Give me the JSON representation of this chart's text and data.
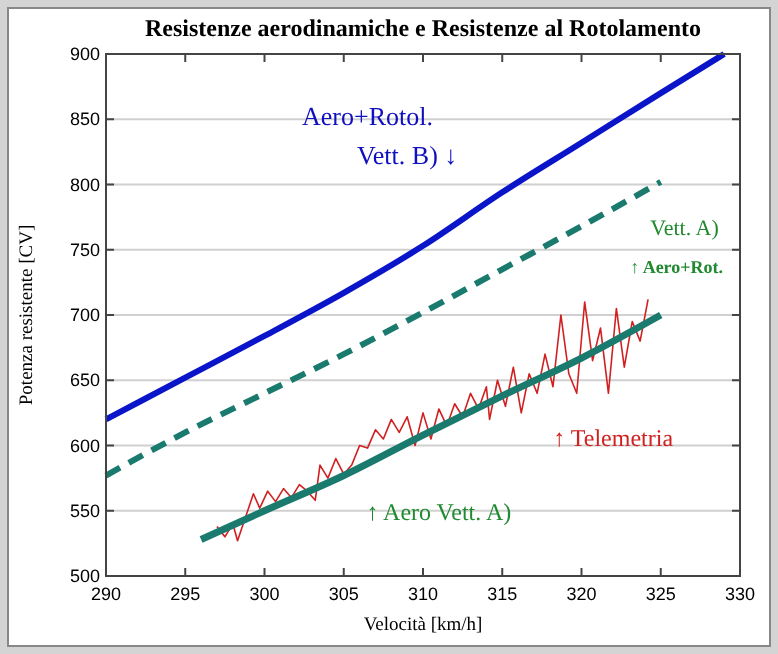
{
  "chart_data": {
    "type": "line",
    "title": "Resistenze aerodinamiche e Resistenze al Rotolamento",
    "xlabel": "Velocità  [km/h]",
    "ylabel": "Potenza resistente  [CV]",
    "xlim": [
      290,
      330
    ],
    "xticks": [
      290,
      295,
      300,
      305,
      310,
      315,
      320,
      325,
      330
    ],
    "ylim": [
      500,
      900
    ],
    "yticks": [
      500,
      550,
      600,
      650,
      700,
      750,
      800,
      850,
      900
    ],
    "grid": "y",
    "series": [
      {
        "color": "#0a14c8",
        "line_style": "solid",
        "x": [
          290,
          295,
          300,
          305,
          310,
          315,
          320,
          325,
          329
        ],
        "values": [
          620,
          652,
          684,
          717,
          753,
          794,
          832,
          870,
          900
        ]
      },
      {
        "color": "#1a7a6e",
        "line_style": "dashed",
        "x": [
          290,
          295,
          300,
          305,
          310,
          315,
          320,
          325
        ],
        "values": [
          577,
          610,
          640,
          670,
          702,
          735,
          768,
          802
        ]
      },
      {
        "color": "#d02020",
        "line_style": "solid",
        "x": [
          297,
          297.5,
          298,
          298.3,
          298.8,
          299.3,
          299.7,
          300.2,
          300.7,
          301.2,
          301.7,
          302.2,
          302.7,
          303.2,
          303.5,
          304,
          304.5,
          305,
          305.5,
          306,
          306.5,
          307,
          307.5,
          308,
          308.5,
          309,
          309.5,
          310,
          310.5,
          311,
          311.5,
          312,
          312.5,
          313,
          313.5,
          314,
          314.2,
          314.7,
          315.2,
          315.7,
          316.2,
          316.7,
          317.2,
          317.7,
          318.2,
          318.7,
          319.2,
          319.7,
          320.2,
          320.7,
          321.2,
          321.7,
          322.2,
          322.7,
          323.2,
          323.7,
          324.2
        ],
        "values": [
          538,
          530,
          540,
          527,
          545,
          563,
          552,
          565,
          557,
          567,
          560,
          570,
          565,
          558,
          585,
          575,
          590,
          578,
          585,
          600,
          598,
          612,
          605,
          620,
          610,
          622,
          600,
          625,
          605,
          628,
          615,
          632,
          622,
          640,
          628,
          645,
          620,
          650,
          630,
          660,
          625,
          655,
          640,
          670,
          645,
          700,
          655,
          640,
          710,
          665,
          690,
          640,
          705,
          660,
          695,
          680,
          712
        ]
      },
      {
        "color": "#1a7a6e",
        "line_style": "solid",
        "x": [
          296,
          300,
          305,
          310,
          315,
          320,
          325
        ],
        "values": [
          528,
          550,
          577,
          608,
          638,
          667,
          700
        ]
      }
    ],
    "annotations": [
      "Aero+Rotol.",
      "Vett. B) ↓",
      "Vett. A)",
      "↑ Aero+Rot.",
      "↑ Telemetria",
      "↑ Aero Vett. A)"
    ]
  }
}
